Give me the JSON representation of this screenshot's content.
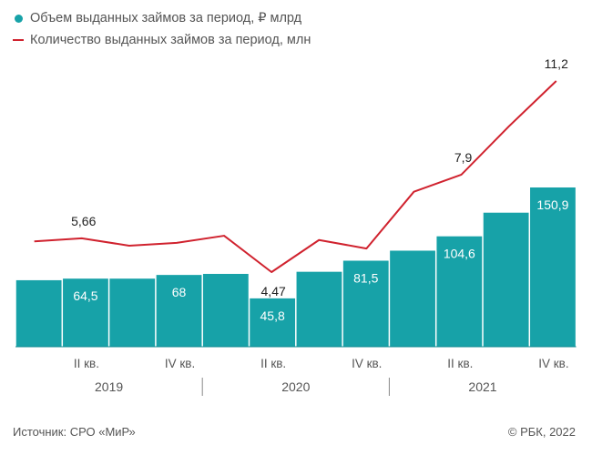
{
  "legend": {
    "bar_label": "Объем выданных займов за период, ₽ млрд",
    "line_label": "Количество выданных займов за период, млн"
  },
  "colors": {
    "bar": "#17a2a8",
    "line": "#d0222e",
    "axis": "#555555",
    "year_divider": "#888888"
  },
  "chart_data": {
    "type": "bar",
    "categories": [
      "I кв. 2019",
      "II кв. 2019",
      "III кв. 2019",
      "IV кв. 2019",
      "I кв. 2020",
      "II кв. 2020",
      "III кв. 2020",
      "IV кв. 2020",
      "I кв. 2021",
      "II кв. 2021",
      "III кв. 2021",
      "IV кв. 2021"
    ],
    "tick_labels": [
      "",
      "II кв.",
      "",
      "IV кв.",
      "",
      "II кв.",
      "",
      "IV кв.",
      "",
      "II кв.",
      "",
      "IV кв."
    ],
    "years": [
      "2019",
      "2020",
      "2021"
    ],
    "series": [
      {
        "name": "Объем выданных займов за период, ₽ млрд",
        "type": "bar",
        "values": [
          63,
          64.5,
          64.5,
          68,
          69,
          45.8,
          71,
          81.5,
          91,
          104.6,
          127,
          150.9
        ],
        "labels": [
          "",
          "64,5",
          "",
          "68",
          "",
          "45,8",
          "",
          "81,5",
          "",
          "104,6",
          "",
          "150,9"
        ]
      },
      {
        "name": "Количество выданных займов за период, млн",
        "type": "line",
        "values": [
          5.55,
          5.66,
          5.4,
          5.5,
          5.75,
          4.47,
          5.6,
          5.3,
          7.3,
          7.9,
          9.6,
          11.2
        ],
        "labels": [
          "",
          "5,66",
          "",
          "",
          "",
          "4,47",
          "",
          "",
          "",
          "7,9",
          "",
          "11,2"
        ]
      }
    ]
  },
  "footer": {
    "source": "Источник: СРО «МиР»",
    "copyright": "© РБК, 2022"
  }
}
